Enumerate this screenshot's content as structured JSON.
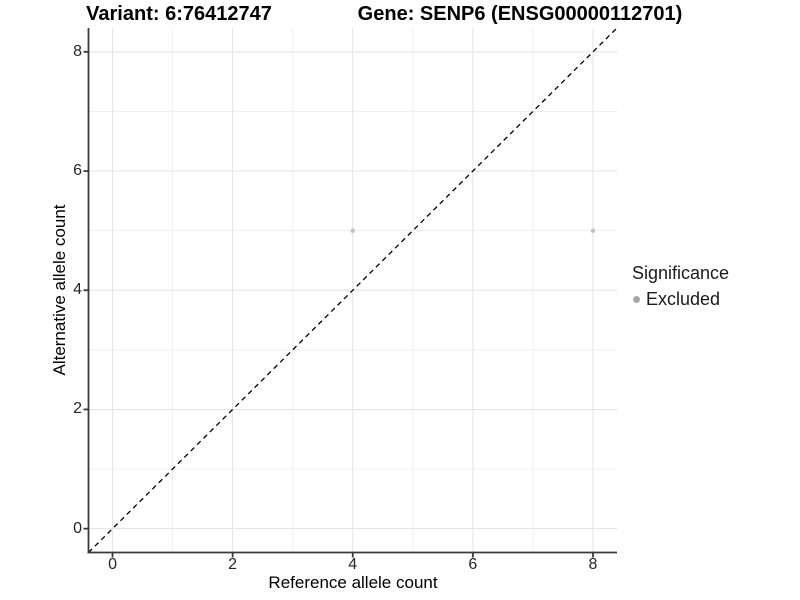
{
  "header": {
    "variant_title": "Variant: 6:76412747",
    "gene_title": "Gene: SENP6 (ENSG00000112701)"
  },
  "chart_data": {
    "type": "scatter",
    "title": "Variant: 6:76412747    Gene: SENP6 (ENSG00000112701)",
    "xlabel": "Reference allele count",
    "ylabel": "Alternative allele count",
    "xlim": [
      -0.4,
      8.4
    ],
    "ylim": [
      -0.4,
      8.4
    ],
    "x_major_ticks": [
      0,
      2,
      4,
      6,
      8
    ],
    "y_major_ticks": [
      0,
      2,
      4,
      6,
      8
    ],
    "x_minor_ticks": [
      1,
      3,
      5,
      7
    ],
    "y_minor_ticks": [
      1,
      3,
      5,
      7
    ],
    "grid": true,
    "legend": {
      "title": "Significance",
      "position": "right",
      "items": [
        {
          "label": "Excluded",
          "color": "#a8a8a8"
        }
      ]
    },
    "series": [
      {
        "name": "Excluded",
        "color": "#c0c0c0",
        "points": [
          {
            "x": 4,
            "y": 5
          },
          {
            "x": 8,
            "y": 5
          }
        ]
      }
    ],
    "diagonal_line": {
      "from": [
        -0.4,
        -0.4
      ],
      "to": [
        8.4,
        8.4
      ],
      "style": "dashed",
      "color": "#000000"
    },
    "colors": {
      "grid_major": "#e3e3e3",
      "grid_minor": "#efefef",
      "axis": "#3a3a3a",
      "background": "#ffffff"
    }
  }
}
